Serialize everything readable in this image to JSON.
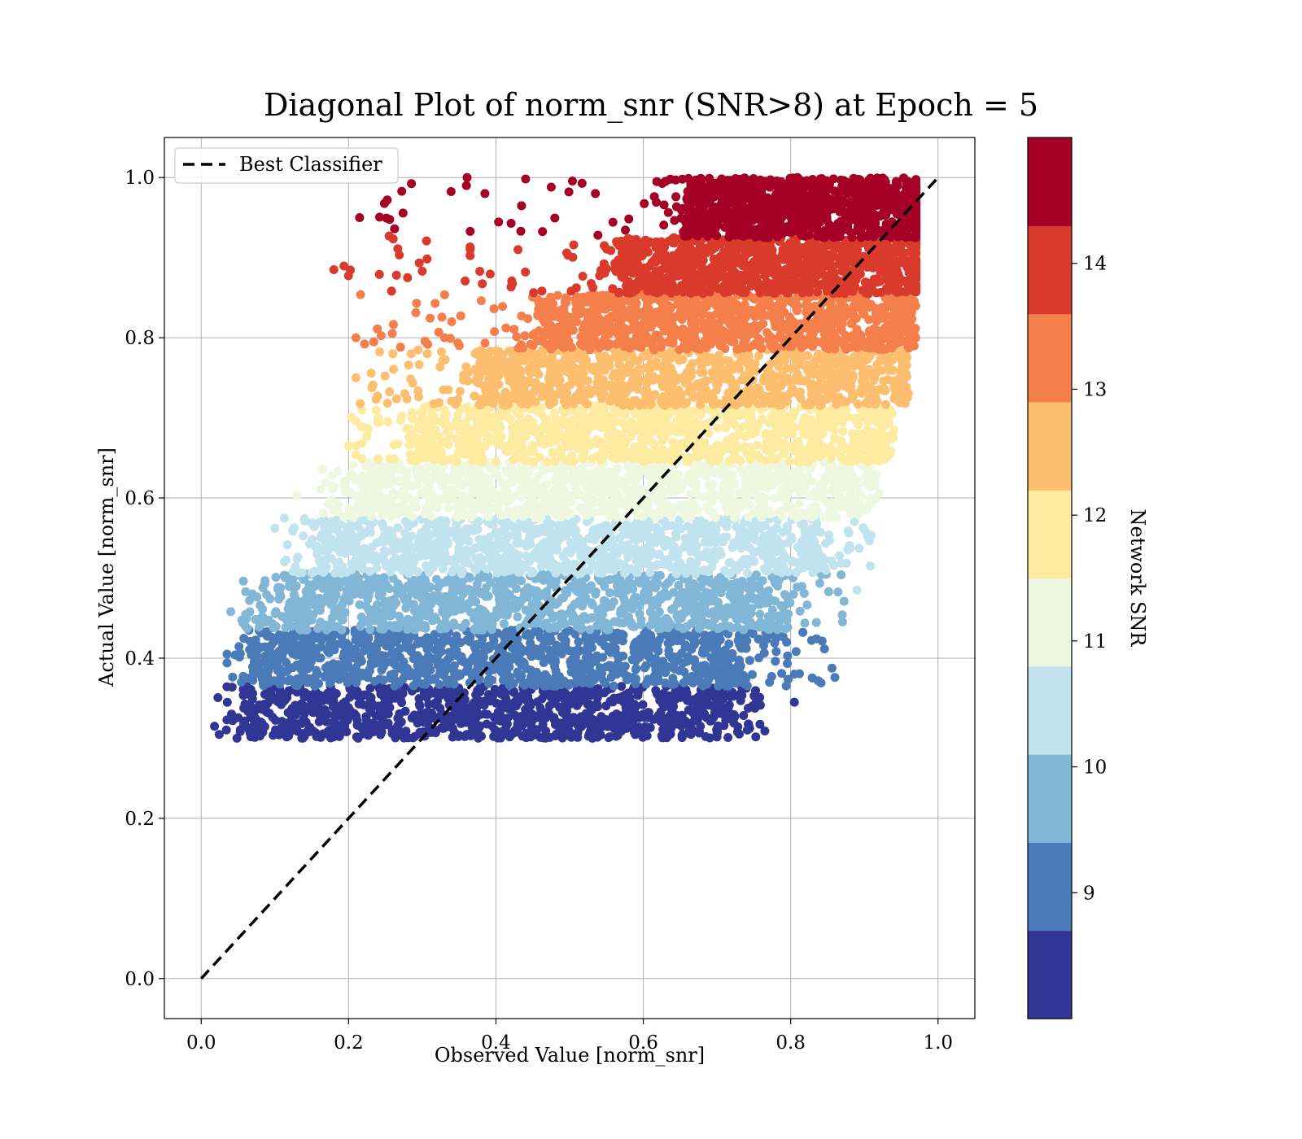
{
  "chart_data": {
    "type": "scatter",
    "title": "Diagonal Plot of norm_snr (SNR>8) at Epoch = 5",
    "xlabel": "Observed Value [norm_snr]",
    "ylabel": "Actual Value [norm_snr]",
    "xlim": [
      -0.05,
      1.05
    ],
    "ylim": [
      -0.05,
      1.05
    ],
    "grid": true,
    "x_ticks": [
      0.0,
      0.2,
      0.4,
      0.6,
      0.8,
      1.0
    ],
    "x_tick_labels": [
      "0.0",
      "0.2",
      "0.4",
      "0.6",
      "0.8",
      "1.0"
    ],
    "y_ticks": [
      0.0,
      0.2,
      0.4,
      0.6,
      0.8,
      1.0
    ],
    "y_tick_labels": [
      "0.0",
      "0.2",
      "0.4",
      "0.6",
      "0.8",
      "1.0"
    ],
    "legend": {
      "location": "upper-left",
      "entries": [
        {
          "label": "Best Classifier",
          "style": "dashed",
          "color": "#000000"
        }
      ]
    },
    "reference_line": {
      "label": "Best Classifier",
      "x": [
        0.0,
        1.0
      ],
      "y": [
        0.0,
        1.0
      ]
    },
    "colorbar": {
      "label": "Network SNR",
      "range": [
        8.0,
        15.0
      ],
      "ticks": [
        9,
        10,
        11,
        12,
        13,
        14
      ],
      "tick_labels": [
        "9",
        "10",
        "11",
        "12",
        "13",
        "14"
      ],
      "colors": [
        "#313695",
        "#4a7ab7",
        "#81b6d6",
        "#c0e3ee",
        "#eef8e0",
        "#fdeba2",
        "#fdbf6f",
        "#f57f4b",
        "#d93a2b",
        "#a50026"
      ]
    },
    "bands": [
      {
        "snr_range": [
          8.0,
          8.7
        ],
        "y_range": [
          0.3,
          0.365
        ],
        "x_range": [
          0.07,
          0.7
        ],
        "x_range_edge": [
          0.02,
          0.76
        ],
        "color": "#313695"
      },
      {
        "snr_range": [
          8.7,
          9.4
        ],
        "y_range": [
          0.365,
          0.435
        ],
        "x_range": [
          0.09,
          0.73
        ],
        "x_range_edge": [
          0.04,
          0.86
        ],
        "color": "#4a7ab7"
      },
      {
        "snr_range": [
          9.4,
          10.1
        ],
        "y_range": [
          0.435,
          0.505
        ],
        "x_range": [
          0.12,
          0.77
        ],
        "x_range_edge": [
          0.05,
          0.88
        ],
        "color": "#81b6d6"
      },
      {
        "snr_range": [
          10.1,
          10.8
        ],
        "y_range": [
          0.505,
          0.575
        ],
        "x_range": [
          0.17,
          0.83
        ],
        "x_range_edge": [
          0.11,
          0.91
        ],
        "color": "#c0e3ee"
      },
      {
        "snr_range": [
          10.8,
          11.5
        ],
        "y_range": [
          0.575,
          0.645
        ],
        "x_range": [
          0.23,
          0.88
        ],
        "x_range_edge": [
          0.16,
          0.92
        ],
        "color": "#eef8e0"
      },
      {
        "snr_range": [
          11.5,
          12.2
        ],
        "y_range": [
          0.645,
          0.715
        ],
        "x_range": [
          0.3,
          0.92
        ],
        "x_range_edge": [
          0.2,
          0.94
        ],
        "color": "#fdeba2"
      },
      {
        "snr_range": [
          12.2,
          12.9
        ],
        "y_range": [
          0.715,
          0.785
        ],
        "x_range": [
          0.38,
          0.95
        ],
        "x_range_edge": [
          0.21,
          0.96
        ],
        "color": "#fdbf6f"
      },
      {
        "snr_range": [
          12.9,
          13.6
        ],
        "y_range": [
          0.785,
          0.855
        ],
        "x_range": [
          0.47,
          0.96
        ],
        "x_range_edge": [
          0.21,
          0.97
        ],
        "color": "#f57f4b"
      },
      {
        "snr_range": [
          13.6,
          14.3
        ],
        "y_range": [
          0.855,
          0.925
        ],
        "x_range": [
          0.57,
          0.97
        ],
        "x_range_edge": [
          0.18,
          0.97
        ],
        "color": "#d93a2b"
      },
      {
        "snr_range": [
          14.3,
          15.0
        ],
        "y_range": [
          0.925,
          1.0
        ],
        "x_range": [
          0.66,
          0.97
        ],
        "x_range_edge": [
          0.21,
          0.97
        ],
        "color": "#a50026"
      }
    ],
    "outliers": [
      {
        "x": 0.215,
        "y": 0.95,
        "snr": 14.5
      },
      {
        "x": 0.36,
        "y": 0.99,
        "snr": 14.5
      },
      {
        "x": 0.385,
        "y": 0.98,
        "snr": 14.5
      },
      {
        "x": 0.475,
        "y": 0.988,
        "snr": 14.5
      },
      {
        "x": 0.535,
        "y": 0.98,
        "snr": 14.5
      },
      {
        "x": 0.18,
        "y": 0.885,
        "snr": 13.9
      },
      {
        "x": 0.255,
        "y": 0.927,
        "snr": 13.9
      },
      {
        "x": 0.265,
        "y": 0.878,
        "snr": 13.9
      },
      {
        "x": 0.28,
        "y": 0.875,
        "snr": 13.9
      },
      {
        "x": 0.3,
        "y": 0.883,
        "snr": 13.9
      },
      {
        "x": 0.365,
        "y": 0.91,
        "snr": 13.9
      },
      {
        "x": 0.43,
        "y": 0.91,
        "snr": 13.9
      },
      {
        "x": 0.21,
        "y": 0.8,
        "snr": 13.2
      },
      {
        "x": 0.34,
        "y": 0.82,
        "snr": 13.2
      },
      {
        "x": 0.33,
        "y": 0.8,
        "snr": 13.2
      },
      {
        "x": 0.21,
        "y": 0.75,
        "snr": 12.5
      },
      {
        "x": 0.26,
        "y": 0.78,
        "snr": 12.5
      },
      {
        "x": 0.285,
        "y": 0.78,
        "snr": 12.5
      },
      {
        "x": 0.2,
        "y": 0.665,
        "snr": 11.8
      },
      {
        "x": 0.225,
        "y": 0.677,
        "snr": 11.8
      },
      {
        "x": 0.21,
        "y": 0.665,
        "snr": 11.8
      },
      {
        "x": 0.13,
        "y": 0.603,
        "snr": 11.1
      },
      {
        "x": 0.18,
        "y": 0.585,
        "snr": 11.1
      },
      {
        "x": 0.1,
        "y": 0.562,
        "snr": 10.4
      },
      {
        "x": 0.04,
        "y": 0.458,
        "snr": 9.7
      },
      {
        "x": 0.06,
        "y": 0.44,
        "snr": 9.7
      },
      {
        "x": 0.08,
        "y": 0.466,
        "snr": 9.7
      },
      {
        "x": 0.86,
        "y": 0.376,
        "snr": 9.0
      },
      {
        "x": 0.805,
        "y": 0.38,
        "snr": 9.0
      },
      {
        "x": 0.805,
        "y": 0.345,
        "snr": 8.3
      },
      {
        "x": 0.765,
        "y": 0.309,
        "snr": 8.3
      },
      {
        "x": 0.035,
        "y": 0.405,
        "snr": 9.0
      },
      {
        "x": 0.035,
        "y": 0.394,
        "snr": 9.0
      },
      {
        "x": 0.018,
        "y": 0.315,
        "snr": 8.3
      },
      {
        "x": 0.87,
        "y": 0.454,
        "snr": 9.7
      },
      {
        "x": 0.89,
        "y": 0.485,
        "snr": 10.4
      }
    ]
  }
}
